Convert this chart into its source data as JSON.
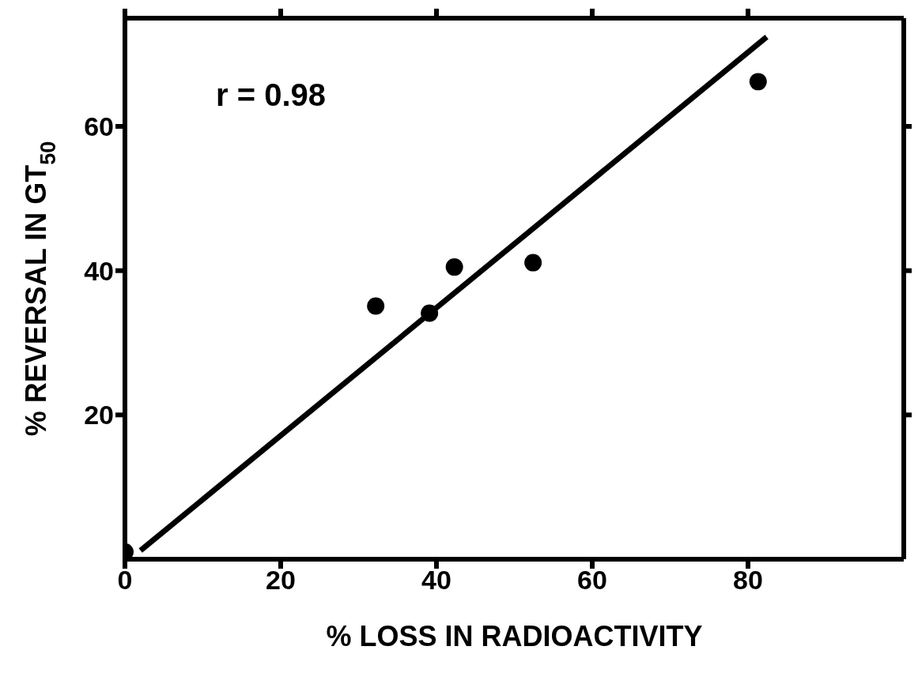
{
  "chart_data": {
    "type": "scatter",
    "xlabel": "% LOSS IN RADIOACTIVITY",
    "ylabel": "% REVERSAL IN GT$_{50}$",
    "annotations": [
      "r = 0.98"
    ],
    "xlim": [
      0,
      100
    ],
    "xticks": [
      0,
      20,
      40,
      60,
      80
    ],
    "ylim": [
      0,
      75
    ],
    "yticks": [
      20,
      40,
      60
    ],
    "marker": "circle",
    "series": [
      {
        "color": "#000000",
        "x": [
          0,
          32.2,
          39.1,
          42.3,
          52.4,
          81.3
        ],
        "values": [
          1,
          35.1,
          34.1,
          40.5,
          41.1,
          66.2
        ]
      },
      {
        "type": "line",
        "color": "#000000",
        "marker": "none",
        "x": [
          2,
          82.4
        ],
        "values": [
          1.2,
          72.4
        ]
      }
    ]
  }
}
